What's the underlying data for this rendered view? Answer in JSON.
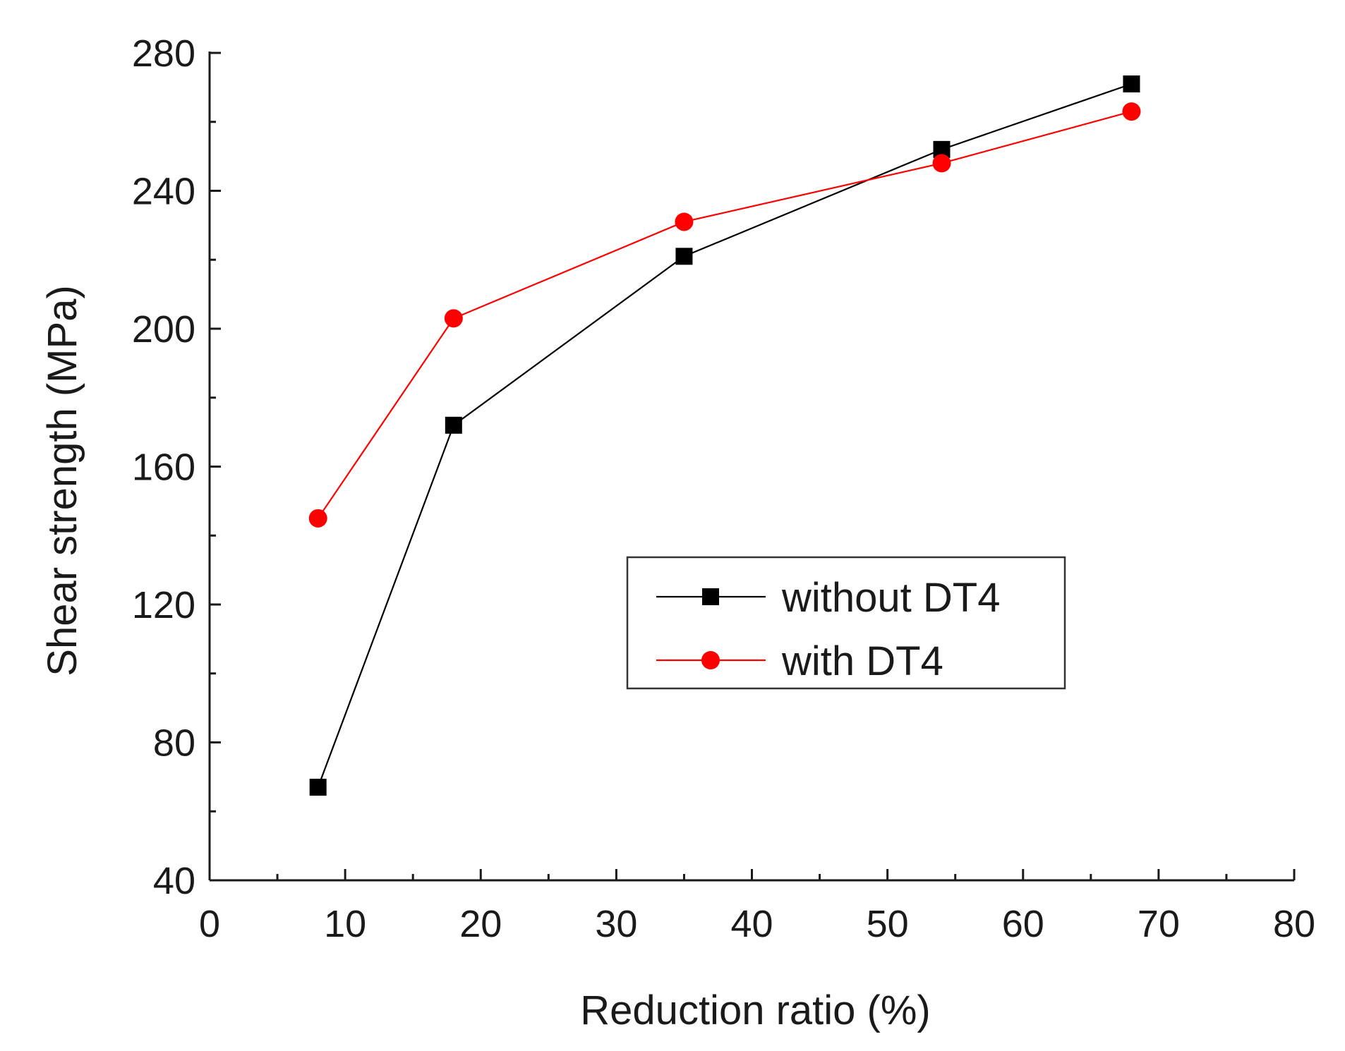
{
  "chart_data": {
    "type": "line",
    "title": "",
    "xlabel": "Reduction ratio (%)",
    "ylabel": "Shear strength (MPa)",
    "xlim": [
      0,
      80
    ],
    "ylim": [
      40,
      280
    ],
    "xticks": [
      0,
      10,
      20,
      30,
      40,
      50,
      60,
      70,
      80
    ],
    "yticks": [
      40,
      80,
      120,
      160,
      200,
      240,
      280
    ],
    "grid": false,
    "legend_position": "center-right",
    "series": [
      {
        "name": "without DT4",
        "color": "#000000",
        "marker": "square",
        "x": [
          8,
          18,
          35,
          54,
          68
        ],
        "values": [
          67,
          172,
          221,
          252,
          271
        ]
      },
      {
        "name": "with DT4",
        "color": "#ff0000",
        "marker": "circle",
        "x": [
          8,
          18,
          35,
          54,
          68
        ],
        "values": [
          145,
          203,
          231,
          248,
          263
        ]
      }
    ]
  }
}
